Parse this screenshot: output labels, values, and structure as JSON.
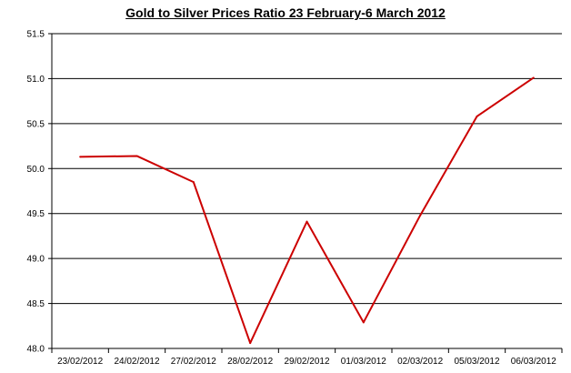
{
  "chart_data": {
    "type": "line",
    "title": "Gold to Silver Prices Ratio 23 February-6 March 2012",
    "xlabel": "",
    "ylabel": "",
    "categories": [
      "23/02/2012",
      "24/02/2012",
      "27/02/2012",
      "28/02/2012",
      "29/02/2012",
      "01/03/2012",
      "02/03/2012",
      "05/03/2012",
      "06/03/2012"
    ],
    "series": [
      {
        "values": [
          50.13,
          50.14,
          49.85,
          48.06,
          49.41,
          48.29,
          49.48,
          50.58,
          51.01
        ]
      }
    ],
    "ylim": [
      48.0,
      51.5
    ],
    "yticks": [
      "48.0",
      "48.5",
      "49.0",
      "49.5",
      "50.0",
      "50.5",
      "51.0",
      "51.5"
    ],
    "grid": true,
    "legend": "none",
    "line_color": "#cc0000",
    "grid_color": "#000000"
  }
}
